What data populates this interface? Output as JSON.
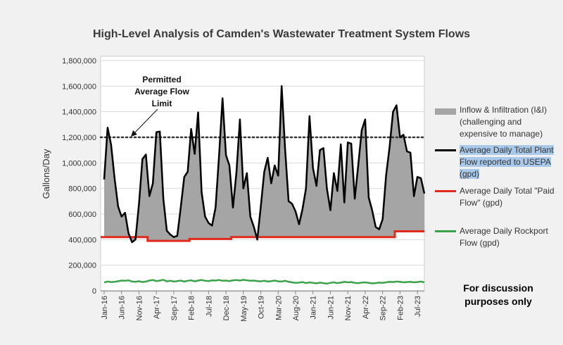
{
  "chart_data": {
    "type": "line",
    "title": "High-Level Analysis of Camden's Wastewater Treatment System Flows",
    "xlabel": "",
    "ylabel": "Gallons/Day",
    "ylim": [
      0,
      1800000
    ],
    "yticks": [
      0,
      200000,
      400000,
      600000,
      800000,
      1000000,
      1200000,
      1400000,
      1600000,
      1800000
    ],
    "ytick_labels": [
      "0",
      "200,000",
      "400,000",
      "600,000",
      "800,000",
      "1,000,000",
      "1,200,000",
      "1,400,000",
      "1,600,000",
      "1,800,000"
    ],
    "x_start": "Jan-16",
    "x_end": "Nov-23",
    "xtick_labels": [
      "Jan-16",
      "Jun-16",
      "Nov-16",
      "Apr-17",
      "Sep-17",
      "Feb-18",
      "Jul-18",
      "Dec-18",
      "May-19",
      "Oct-19",
      "Mar-20",
      "Aug-20",
      "Jan-21",
      "Jun-21",
      "Nov-21",
      "Apr-22",
      "Sep-22",
      "Feb-23",
      "Jul-23"
    ],
    "grid": true,
    "reference_line": {
      "value": 1200000,
      "label": "Permitted Average Flow Limit",
      "style": "dotted"
    },
    "series": [
      {
        "name": "Average Daily Total Plant Flow reported to USEPA (gpd)",
        "color": "#000000",
        "values": [
          870000,
          1275000,
          1140000,
          880000,
          660000,
          580000,
          610000,
          450000,
          380000,
          400000,
          680000,
          1030000,
          1065000,
          740000,
          840000,
          1240000,
          1245000,
          720000,
          470000,
          440000,
          420000,
          430000,
          650000,
          890000,
          930000,
          1265000,
          1070000,
          1395000,
          770000,
          580000,
          530000,
          510000,
          650000,
          1050000,
          1505000,
          1060000,
          980000,
          650000,
          920000,
          1340000,
          800000,
          920000,
          580000,
          500000,
          400000,
          660000,
          930000,
          1040000,
          840000,
          980000,
          900000,
          1600000,
          1100000,
          700000,
          680000,
          620000,
          520000,
          640000,
          800000,
          1365000,
          960000,
          820000,
          1100000,
          1115000,
          800000,
          630000,
          920000,
          780000,
          1145000,
          690000,
          1160000,
          1150000,
          720000,
          980000,
          1255000,
          1340000,
          730000,
          630000,
          500000,
          480000,
          560000,
          900000,
          1120000,
          1400000,
          1450000,
          1200000,
          1220000,
          1090000,
          1080000,
          740000,
          890000,
          880000,
          760000
        ]
      },
      {
        "name": "Average Daily Total \"Paid Flow\" (gpd)",
        "color": "#e02a1b",
        "segments": [
          {
            "from": "Jan-16",
            "to": "Jan-17",
            "value": 420000
          },
          {
            "from": "Feb-17",
            "to": "Jan-18",
            "value": 390000
          },
          {
            "from": "Feb-18",
            "to": "Jan-19",
            "value": 405000
          },
          {
            "from": "Feb-19",
            "to": "Dec-22",
            "value": 420000
          },
          {
            "from": "Jan-23",
            "to": "Nov-23",
            "value": 465000
          }
        ]
      },
      {
        "name": "Average Daily Rockport Flow (gpd)",
        "color": "#3aa34a",
        "values": [
          65000,
          72000,
          68000,
          70000,
          75000,
          80000,
          78000,
          82000,
          72000,
          70000,
          75000,
          68000,
          72000,
          80000,
          85000,
          76000,
          80000,
          86000,
          74000,
          78000,
          72000,
          76000,
          80000,
          72000,
          78000,
          82000,
          74000,
          80000,
          84000,
          78000,
          76000,
          82000,
          80000,
          84000,
          78000,
          80000,
          76000,
          82000,
          84000,
          80000,
          86000,
          82000,
          78000,
          80000,
          76000,
          74000,
          78000,
          72000,
          76000,
          80000,
          74000,
          72000,
          78000,
          70000,
          66000,
          62000,
          64000,
          68000,
          60000,
          66000,
          62000,
          58000,
          64000,
          60000,
          56000,
          62000,
          66000,
          60000,
          64000,
          70000,
          66000,
          68000,
          62000,
          60000,
          64000,
          66000,
          62000,
          58000,
          60000,
          64000,
          62000,
          66000,
          70000,
          68000,
          72000,
          70000,
          66000,
          68000,
          70000,
          66000,
          68000,
          72000,
          66000
        ]
      }
    ],
    "area_series": {
      "name": "Inflow & Infiltration (I&I) (challenging and expensive to manage)",
      "color": "#a5a5a5"
    }
  },
  "legend": [
    {
      "text": "Inflow & Infiltration (I&I) (challenging and expensive to manage)"
    },
    {
      "text": "Average Daily Total Plant Flow  reported to USEPA (gpd)"
    },
    {
      "text": "Average Daily Total \"Paid Flow\" (gpd)"
    },
    {
      "text": "Average Daily Rockport Flow (gpd)"
    }
  ],
  "note": "For discussion purposes only"
}
